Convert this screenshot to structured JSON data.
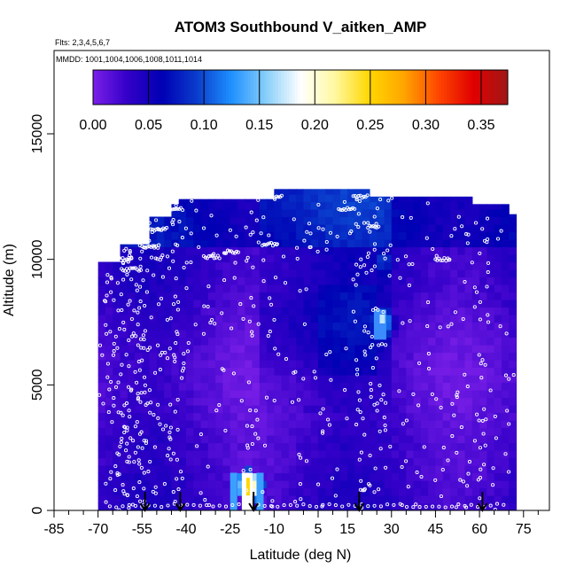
{
  "chart_data": {
    "type": "heatmap",
    "title": "ATOM3 Southbound V_aitken_AMP",
    "subtitle_flights": "Flts: 2,3,4,5,6,7",
    "subtitle_dates": "MMDD: 1001,1004,1006,1008,1011,1014",
    "xlabel": "Latitude (deg N)",
    "ylabel": "Altitude (m)",
    "xlim": [
      -85,
      90
    ],
    "ylim": [
      0,
      17500
    ],
    "x_ticks": [
      -85,
      -70,
      -55,
      -40,
      -25,
      -10,
      5,
      15,
      30,
      45,
      60,
      75
    ],
    "x_tick_labels": [
      "-85",
      "-70",
      "-55",
      "-40",
      "-25",
      "-10",
      "5",
      "15",
      "30",
      "45",
      "60",
      "75"
    ],
    "y_ticks": [
      0,
      5000,
      10000,
      15000
    ],
    "y_tick_labels": [
      "0",
      "5000",
      "10000",
      "15000"
    ],
    "colorbar": {
      "range": [
        0,
        0.375
      ],
      "ticks": [
        0.0,
        0.05,
        0.1,
        0.15,
        0.2,
        0.25,
        0.3,
        0.35
      ],
      "tick_labels": [
        "0.00",
        "0.05",
        "0.10",
        "0.15",
        "0.20",
        "0.25",
        "0.30",
        "0.35"
      ],
      "colors": [
        "#7a1fe8",
        "#3300c8",
        "#0000b4",
        "#0a3ccc",
        "#1e90ff",
        "#87cefa",
        "#ffffff",
        "#fff8a0",
        "#ffd700",
        "#ffa500",
        "#ff4500",
        "#e00000",
        "#a01818"
      ]
    },
    "flight_markers_lat": [
      -54,
      -42,
      -17,
      19,
      61
    ],
    "grid": false,
    "data_extent": {
      "lat_min": -70,
      "lat_max": 72,
      "alt_top": 12800
    },
    "hotspots": [
      {
        "lat": -18,
        "alt": 1000,
        "value": 0.22
      },
      {
        "lat": 27,
        "alt": 7500,
        "value": 0.12
      },
      {
        "lat": 27,
        "alt": 9900,
        "value": 0.09
      }
    ]
  }
}
